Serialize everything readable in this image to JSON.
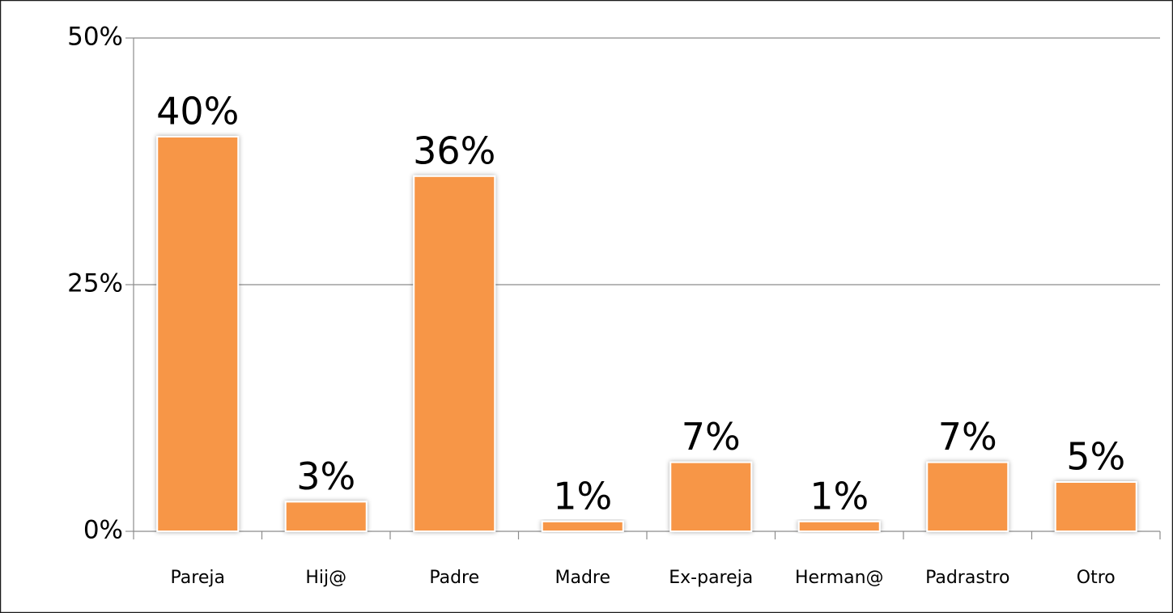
{
  "chart_data": {
    "type": "bar",
    "categories": [
      "Pareja",
      "Hij@",
      "Padre",
      "Madre",
      "Ex-pareja",
      "Herman@",
      "Padrastro",
      "Otro"
    ],
    "values": [
      40,
      3,
      36,
      1,
      7,
      1,
      7,
      5
    ],
    "value_labels": [
      "40%",
      "3%",
      "36%",
      "1%",
      "7%",
      "1%",
      "7%",
      "5%"
    ],
    "color": "#f79646",
    "ylim": [
      0,
      50
    ],
    "yticks": [
      {
        "value": 0,
        "label": "0%"
      },
      {
        "value": 25,
        "label": "25%"
      },
      {
        "value": 50,
        "label": "50%"
      }
    ],
    "grid": true
  }
}
